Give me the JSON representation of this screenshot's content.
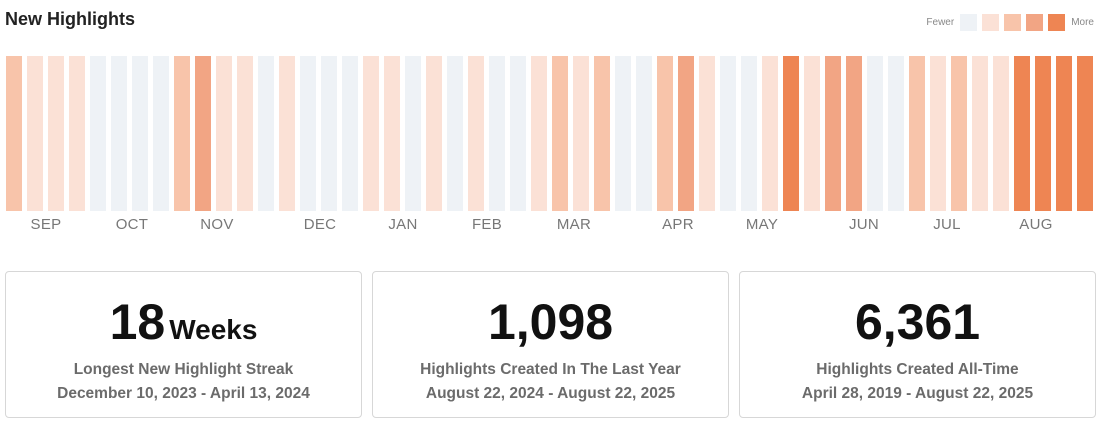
{
  "header": {
    "title": "New Highlights"
  },
  "legend": {
    "fewer_label": "Fewer",
    "more_label": "More",
    "colors": [
      "#eef2f6",
      "#fbe1d6",
      "#f8c4aa",
      "#f2a584",
      "#ee8553"
    ]
  },
  "chart_data": {
    "type": "bar",
    "description_levels": "intensity level per week, 0 = none, 4 = most",
    "months": [
      "SEP",
      "OCT",
      "NOV",
      "DEC",
      "JAN",
      "FEB",
      "MAR",
      "APR",
      "MAY",
      "JUN",
      "JUL",
      "AUG"
    ],
    "levels": [
      2,
      1,
      1,
      1,
      0,
      0,
      0,
      0,
      2,
      3,
      1,
      1,
      0,
      1,
      0,
      0,
      0,
      1,
      1,
      0,
      1,
      0,
      1,
      0,
      0,
      1,
      2,
      1,
      2,
      0,
      0,
      2,
      3,
      1,
      0,
      0,
      1,
      4,
      1,
      3,
      3,
      0,
      0,
      2,
      1,
      2,
      1,
      1,
      4,
      4,
      4,
      4
    ]
  },
  "cards": [
    {
      "value": "18",
      "unit": "Weeks",
      "label": "Longest New Highlight Streak",
      "range": "December 10, 2023 - April 13, 2024"
    },
    {
      "value": "1,098",
      "unit": "",
      "label": "Highlights Created In The Last Year",
      "range": "August 22, 2024 - August 22, 2025"
    },
    {
      "value": "6,361",
      "unit": "",
      "label": "Highlights Created All-Time",
      "range": "April 28, 2019 - August 22, 2025"
    }
  ]
}
